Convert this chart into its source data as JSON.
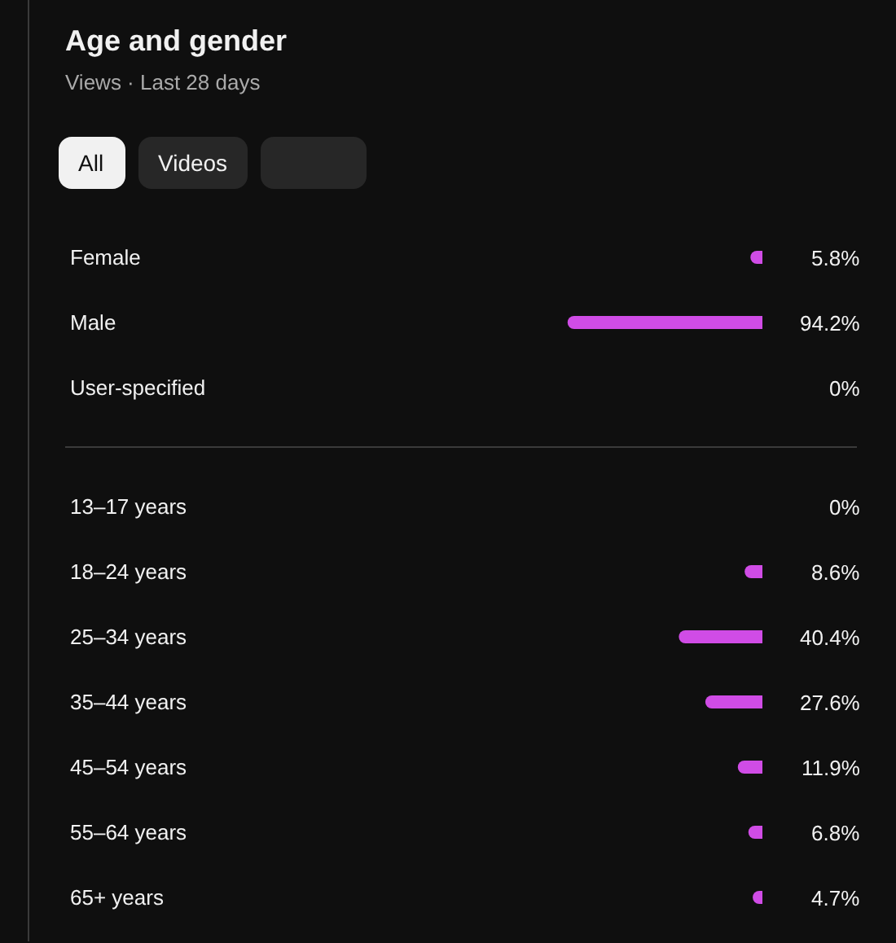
{
  "chart_data": [
    {
      "type": "bar",
      "orientation": "horizontal",
      "title": "Age and gender",
      "subtitle": "Views · Last 28 days",
      "annotations": [
        "All",
        "Videos"
      ],
      "categories": [
        "Female",
        "Male",
        "User-specified"
      ],
      "values": [
        5.8,
        94.2,
        0
      ],
      "value_labels": [
        "5.8%",
        "94.2%",
        "0%"
      ],
      "color": "#d04ce6",
      "tick_labels": "y"
    },
    {
      "type": "bar",
      "orientation": "horizontal",
      "categories": [
        "13–17 years",
        "18–24 years",
        "25–34 years",
        "35–44 years",
        "45–54 years",
        "55–64 years",
        "65+ years"
      ],
      "values": [
        0,
        8.6,
        40.4,
        27.6,
        11.9,
        6.8,
        4.7
      ],
      "value_labels": [
        "0%",
        "8.6%",
        "40.4%",
        "27.6%",
        "11.9%",
        "6.8%",
        "4.7%"
      ],
      "color": "#d04ce6",
      "tick_labels": "y"
    }
  ]
}
